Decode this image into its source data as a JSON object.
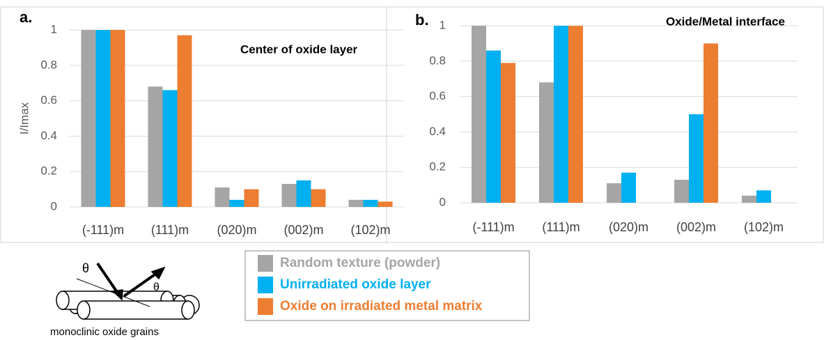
{
  "chart_data": [
    {
      "type": "bar",
      "panel_label": "a.",
      "annotation": "Center of oxide layer",
      "y_label": "I/Imax",
      "categories": [
        "(-111)m",
        "(111)m",
        "(020)m",
        "(002)m",
        "(102)m"
      ],
      "series": [
        {
          "name": "Random texture (powder)",
          "color": "#a5a5a5",
          "values": [
            1,
            0.68,
            0.11,
            0.13,
            0.04
          ]
        },
        {
          "name": "Unirradiated oxide layer",
          "color": "#00b0f0",
          "values": [
            1,
            0.66,
            0.04,
            0.15,
            0.04
          ]
        },
        {
          "name": "Oxide on irradiated metal matrix",
          "color": "#ed7d31",
          "values": [
            1,
            0.97,
            0.1,
            0.1,
            0.03
          ]
        }
      ],
      "ylim": [
        0,
        1
      ],
      "yticks": [
        0,
        0.2,
        0.4,
        0.6,
        0.8,
        1
      ],
      "grid": true
    },
    {
      "type": "bar",
      "panel_label": "b.",
      "annotation": "Oxide/Metal interface",
      "categories": [
        "(-111)m",
        "(111)m",
        "(020)m",
        "(002)m",
        "(102)m"
      ],
      "series": [
        {
          "color": "#a5a5a5",
          "values": [
            1,
            0.68,
            0.11,
            0.13,
            0.04
          ]
        },
        {
          "color": "#00b0f0",
          "values": [
            0.86,
            1,
            0.17,
            0.5,
            0.07
          ]
        },
        {
          "color": "#ed7d31",
          "values": [
            0.79,
            1,
            null,
            0.9,
            null
          ]
        }
      ],
      "ylim": [
        0,
        1
      ],
      "yticks": [
        0,
        0.2,
        0.4,
        0.6,
        0.8,
        1
      ],
      "grid": true
    }
  ],
  "diagram": {
    "angle_label": "θ",
    "caption": "monoclinic oxide grains"
  }
}
